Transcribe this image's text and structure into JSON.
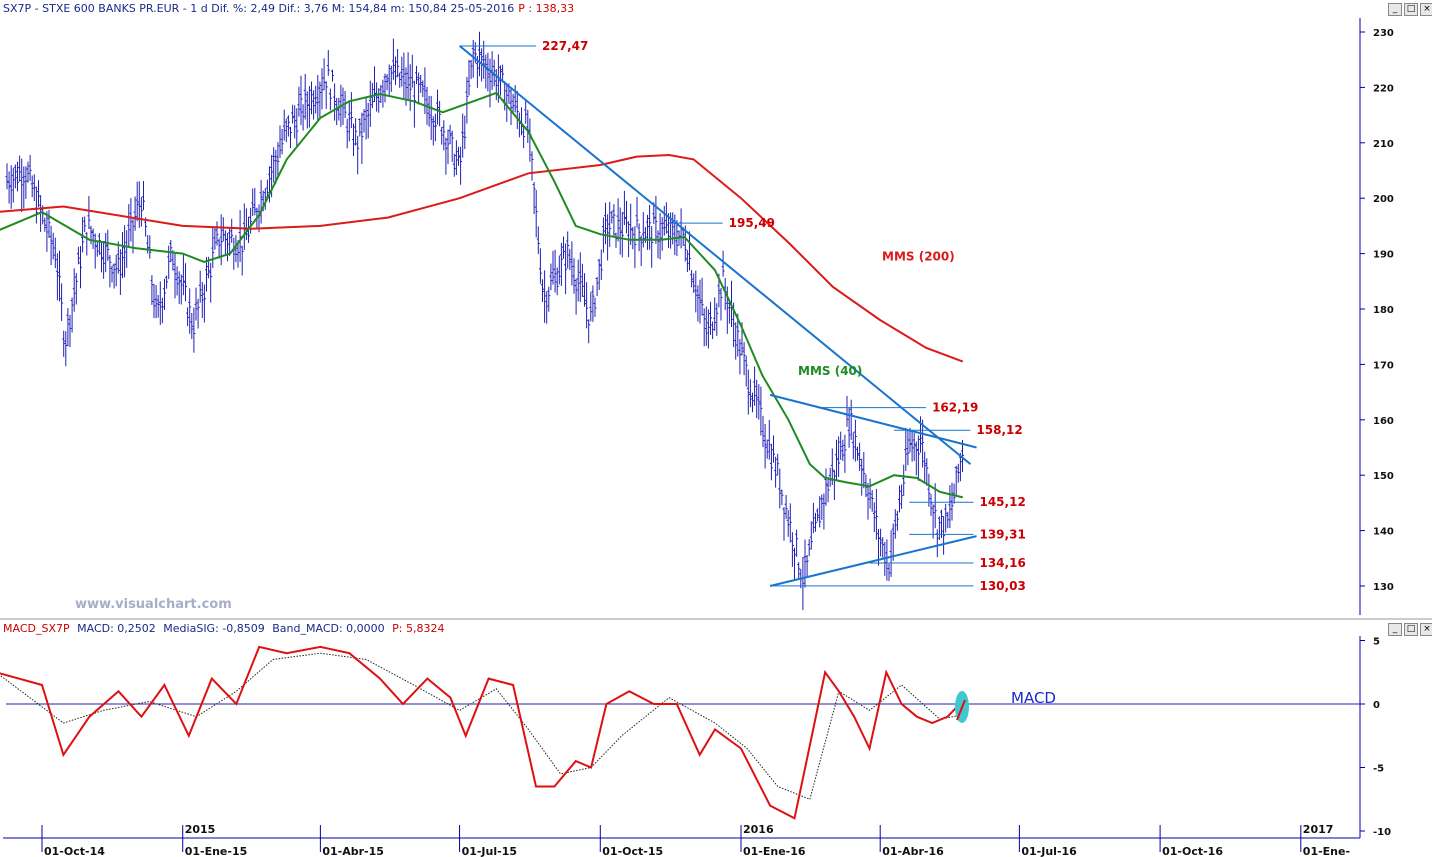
{
  "header": {
    "title": "SX7P - STXE 600 BANKS PR.EUR - 1 d Dif. %: 2,49 Dif.: 3,76 M: 154,84 m: 150,84 25-05-2016",
    "price_label": "P : 138,33"
  },
  "macd_header": {
    "name": "MACD_SX7P",
    "items": [
      "MACD: 0,2502",
      "MediaSIG: -0,8509",
      "Band_MACD: 0,0000",
      "P: 5,8324"
    ]
  },
  "window_buttons": [
    "_",
    "□",
    "×"
  ],
  "watermark": "www.visualchart.com",
  "colors": {
    "price_bars": "#1f1fb8",
    "mms40": "#1e8c1e",
    "mms200": "#dd1a1a",
    "trendline": "#1874cd",
    "level_text": "#cc0000",
    "macd": "#dd1111",
    "axis": "#0000aa",
    "highlight": "#40c8d0"
  },
  "chart_data": [
    {
      "type": "line",
      "subtype": "ohlc_bars",
      "series": [
        {
          "name": "MMS (200)",
          "x": [
            "2014-09-01",
            "2014-10-15",
            "2015-01-01",
            "2015-02-15",
            "2015-04-01",
            "2015-05-15",
            "2015-07-01",
            "2015-08-15",
            "2015-10-01",
            "2015-10-25",
            "2015-11-15",
            "2015-12-01",
            "2016-01-01",
            "2016-02-01",
            "2016-03-01",
            "2016-04-01",
            "2016-05-01",
            "2016-05-25"
          ],
          "values": [
            197.5,
            198.5,
            195,
            194.5,
            195,
            196.5,
            200,
            204.5,
            206,
            207.5,
            207.8,
            207,
            200,
            192,
            184,
            178,
            173,
            170.5
          ]
        },
        {
          "name": "MMS (40)",
          "x": [
            "2014-09-01",
            "2014-10-01",
            "2014-11-01",
            "2014-12-01",
            "2015-01-01",
            "2015-01-15",
            "2015-02-01",
            "2015-02-20",
            "2015-03-10",
            "2015-04-01",
            "2015-04-20",
            "2015-05-10",
            "2015-06-01",
            "2015-06-20",
            "2015-07-10",
            "2015-07-25",
            "2015-08-15",
            "2015-09-01",
            "2015-09-15",
            "2015-10-01",
            "2015-10-20",
            "2015-11-10",
            "2015-11-25",
            "2015-12-15",
            "2016-01-01",
            "2016-01-15",
            "2016-02-01",
            "2016-02-15",
            "2016-02-25",
            "2016-03-10",
            "2016-03-25",
            "2016-04-10",
            "2016-04-25",
            "2016-05-10",
            "2016-05-25"
          ],
          "values": [
            194,
            197.5,
            192.5,
            191,
            190,
            188.5,
            190,
            197,
            207,
            214.5,
            217.5,
            218.8,
            217.5,
            215.5,
            217.5,
            219,
            212,
            203,
            195,
            193.5,
            192.5,
            192.5,
            193,
            187,
            177,
            168,
            160,
            152,
            149.5,
            148.7,
            148,
            150,
            149.5,
            147,
            146
          ]
        }
      ],
      "price_range": {
        "max": 227.47,
        "min": 130.03
      },
      "annotations": [
        "MMS (200)",
        "MMS (40)"
      ],
      "levels": [
        {
          "label": "227,47",
          "value": 227.47,
          "x_start": "2015-07-01",
          "x_end": "2015-08-20"
        },
        {
          "label": "195,49",
          "value": 195.49,
          "x_start": "2015-11-15",
          "x_end": "2015-12-20"
        },
        {
          "label": "162,19",
          "value": 162.19,
          "x_start": "2016-02-20",
          "x_end": "2016-05-01"
        },
        {
          "label": "158,12",
          "value": 158.12,
          "x_start": "2016-04-10",
          "x_end": "2016-05-30"
        },
        {
          "label": "145,12",
          "value": 145.12,
          "x_start": "2016-04-20",
          "x_end": "2016-06-01"
        },
        {
          "label": "139,31",
          "value": 139.31,
          "x_start": "2016-04-20",
          "x_end": "2016-06-01"
        },
        {
          "label": "134,16",
          "value": 134.16,
          "x_start": "2016-03-25",
          "x_end": "2016-06-01"
        },
        {
          "label": "130,03",
          "value": 130.03,
          "x_start": "2016-01-20",
          "x_end": "2016-06-01"
        }
      ],
      "trendlines": [
        {
          "x": [
            "2015-07-01",
            "2016-05-30"
          ],
          "values": [
            227.5,
            152
          ]
        },
        {
          "x": [
            "2016-01-20",
            "2016-06-03"
          ],
          "values": [
            164.5,
            155
          ]
        },
        {
          "x": [
            "2016-01-20",
            "2016-06-03"
          ],
          "values": [
            130,
            139
          ]
        }
      ],
      "y_ticks": [
        130,
        140,
        150,
        160,
        170,
        180,
        190,
        200,
        210,
        220,
        230
      ],
      "ylim": [
        125,
        232
      ],
      "x_ticks": [
        "01-Oct-14",
        "01-Ene-15",
        "01-Abr-15",
        "01-Jul-15",
        "01-Oct-15",
        "01-Ene-16",
        "01-Abr-16",
        "01-Jul-16",
        "01-Oct-16",
        "01-Ene-"
      ],
      "year_labels": [
        "2015",
        "2016",
        "2017"
      ],
      "grid": false
    },
    {
      "type": "line",
      "series": [
        {
          "name": "MACD",
          "x": [
            "2014-09-01",
            "2014-10-01",
            "2014-10-15",
            "2014-11-01",
            "2014-11-20",
            "2014-12-05",
            "2014-12-20",
            "2015-01-05",
            "2015-01-20",
            "2015-02-05",
            "2015-02-20",
            "2015-03-10",
            "2015-04-01",
            "2015-04-20",
            "2015-05-10",
            "2015-05-25",
            "2015-06-10",
            "2015-06-25",
            "2015-07-05",
            "2015-07-20",
            "2015-08-05",
            "2015-08-20",
            "2015-09-01",
            "2015-09-15",
            "2015-09-25",
            "2015-10-05",
            "2015-10-20",
            "2015-11-05",
            "2015-11-20",
            "2015-12-05",
            "2015-12-15",
            "2016-01-01",
            "2016-01-20",
            "2016-02-05",
            "2016-02-12",
            "2016-02-25",
            "2016-03-05",
            "2016-03-15",
            "2016-03-25",
            "2016-04-05",
            "2016-04-15",
            "2016-04-25",
            "2016-05-05",
            "2016-05-15",
            "2016-05-25"
          ],
          "values": [
            2.5,
            1.5,
            -4,
            -1,
            1,
            -1,
            1.5,
            -2.5,
            2,
            0,
            4.5,
            4,
            4.5,
            4,
            2,
            0,
            2,
            0.5,
            -2.5,
            2,
            1.5,
            -6.5,
            -6.5,
            -4.5,
            -5,
            0,
            1,
            0,
            0,
            -4,
            -2,
            -3.5,
            -8,
            -9,
            -5,
            2.5,
            1,
            -1,
            -3.5,
            2.5,
            0,
            -1,
            -1.5,
            -1,
            0.25
          ]
        },
        {
          "name": "MediaSIG",
          "x": [
            "2014-09-01",
            "2014-10-15",
            "2014-11-10",
            "2014-12-10",
            "2015-01-10",
            "2015-02-05",
            "2015-03-01",
            "2015-04-01",
            "2015-05-01",
            "2015-06-01",
            "2015-07-01",
            "2015-07-25",
            "2015-08-15",
            "2015-09-05",
            "2015-09-25",
            "2015-10-15",
            "2015-11-15",
            "2015-12-15",
            "2016-01-05",
            "2016-01-25",
            "2016-02-15",
            "2016-03-05",
            "2016-03-25",
            "2016-04-15",
            "2016-05-10",
            "2016-05-25"
          ],
          "values": [
            2.5,
            -1.5,
            -0.5,
            0.2,
            -1,
            1,
            3.5,
            4,
            3.5,
            1.5,
            -0.5,
            1.2,
            -2,
            -5.5,
            -5,
            -2.5,
            0.5,
            -1.5,
            -3.5,
            -6.5,
            -7.5,
            1,
            -0.5,
            1.5,
            -1.2,
            -0.85
          ]
        }
      ],
      "y_ticks": [
        -10,
        -5,
        0,
        5
      ],
      "ylim": [
        -10,
        5
      ],
      "annotations": [
        "MACD"
      ],
      "grid": false
    }
  ]
}
